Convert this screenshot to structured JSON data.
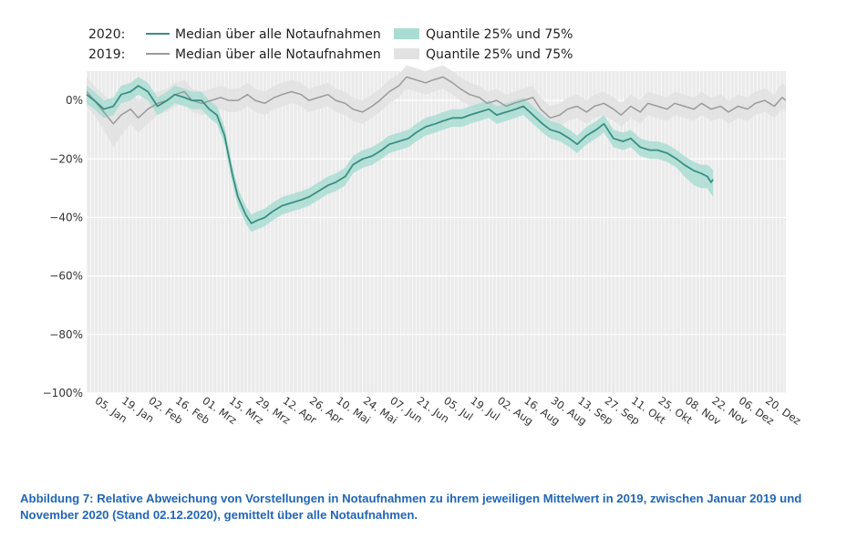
{
  "colors": {
    "median_2020": "#3a8f80",
    "band_2020": "#a9ddd2",
    "median_2019": "#9a9a9a",
    "band_2019": "#e2e2e2",
    "plot_bg": "#ebebeb",
    "caption": "#2166b5"
  },
  "legend": {
    "row_2020": {
      "year": "2020:",
      "median_label": "Median über alle Notaufnahmen",
      "band_label": "Quantile 25% und 75%"
    },
    "row_2019": {
      "year": "2019:",
      "median_label": "Median über alle Notaufnahmen",
      "band_label": "Quantile 25% und 75%"
    }
  },
  "caption": {
    "line1": "Abbildung 7: Relative Abweichung von Vorstellungen in Notaufnahmen zu ihrem jeweiligen Mittelwert in 2019, zwischen Januar 2019 und",
    "line2": "November 2020 (Stand 02.12.2020), gemittelt über alle Notaufnahmen."
  },
  "chart_data": {
    "type": "line",
    "x_unit": "day of year (1 = 01. Jan)",
    "xlim": [
      1,
      366
    ],
    "ylim": [
      -100,
      10
    ],
    "y_ticks": [
      0,
      -20,
      -40,
      -60,
      -80,
      -100
    ],
    "y_tick_labels": [
      "0%",
      "−20%",
      "−40%",
      "−60%",
      "−80%",
      "−100%"
    ],
    "x_ticks": [
      5,
      19,
      33,
      47,
      61,
      75,
      89,
      103,
      117,
      131,
      145,
      159,
      173,
      187,
      201,
      215,
      229,
      243,
      257,
      271,
      285,
      299,
      313,
      327,
      341,
      355
    ],
    "x_tick_labels": [
      "05. Jan",
      "19. Jan",
      "02. Feb",
      "16. Feb",
      "01. Mrz",
      "15. Mrz",
      "29. Mrz",
      "12. Apr",
      "26. Apr",
      "10. Mai",
      "24. Mai",
      "07. Jun",
      "21. Jun",
      "05. Jul",
      "19. Jul",
      "02. Aug",
      "16. Aug",
      "30. Aug",
      "13. Sep",
      "27. Sep",
      "11. Okt",
      "25. Okt",
      "08. Nov",
      "22. Nov",
      "06. Dez",
      "20. Dez"
    ],
    "grid": true,
    "legend_position": "top-left",
    "series": [
      {
        "year": "2020",
        "x": [
          1,
          5,
          10,
          15,
          19,
          24,
          28,
          33,
          38,
          43,
          47,
          52,
          56,
          61,
          65,
          69,
          73,
          77,
          80,
          84,
          87,
          90,
          94,
          98,
          103,
          108,
          113,
          117,
          122,
          127,
          131,
          136,
          140,
          145,
          150,
          155,
          159,
          164,
          169,
          173,
          178,
          183,
          187,
          192,
          197,
          201,
          206,
          211,
          215,
          220,
          225,
          229,
          234,
          239,
          243,
          248,
          253,
          257,
          262,
          267,
          271,
          276,
          281,
          285,
          290,
          295,
          299,
          304,
          309,
          313,
          318,
          322,
          325,
          327,
          328
        ],
        "median": [
          2,
          0,
          -3,
          -2,
          2,
          3,
          5,
          3,
          -2,
          0,
          2,
          1,
          0,
          0,
          -3,
          -5,
          -12,
          -25,
          -33,
          -39,
          -42,
          -41,
          -40,
          -38,
          -36,
          -35,
          -34,
          -33,
          -31,
          -29,
          -28,
          -26,
          -22,
          -20,
          -19,
          -17,
          -15,
          -14,
          -13,
          -11,
          -9,
          -8,
          -7,
          -6,
          -6,
          -5,
          -4,
          -3,
          -5,
          -4,
          -3,
          -2,
          -5,
          -8,
          -10,
          -11,
          -13,
          -15,
          -12,
          -10,
          -8,
          -13,
          -14,
          -13,
          -16,
          -17,
          -17,
          -18,
          -20,
          -22,
          -24,
          -25,
          -26,
          -28,
          -27
        ],
        "q25": [
          -1,
          -3,
          -6,
          -5,
          -1,
          0,
          2,
          0,
          -5,
          -3,
          -1,
          -2,
          -3,
          -3,
          -6,
          -8,
          -15,
          -28,
          -36,
          -42,
          -45,
          -44,
          -43,
          -41,
          -39,
          -38,
          -37,
          -36,
          -34,
          -32,
          -31,
          -29,
          -25,
          -23,
          -22,
          -20,
          -18,
          -17,
          -16,
          -14,
          -12,
          -11,
          -10,
          -9,
          -9,
          -8,
          -7,
          -6,
          -8,
          -7,
          -6,
          -5,
          -8,
          -11,
          -13,
          -14,
          -16,
          -18,
          -15,
          -13,
          -11,
          -16,
          -17,
          -16,
          -19,
          -20,
          -20,
          -21,
          -23,
          -26,
          -29,
          -30,
          -30,
          -32,
          -33
        ],
        "q75": [
          5,
          3,
          0,
          1,
          5,
          6,
          8,
          6,
          1,
          3,
          5,
          4,
          3,
          3,
          0,
          -2,
          -9,
          -22,
          -30,
          -36,
          -39,
          -38,
          -37,
          -35,
          -33,
          -32,
          -31,
          -30,
          -28,
          -26,
          -25,
          -23,
          -19,
          -17,
          -16,
          -14,
          -12,
          -11,
          -10,
          -8,
          -6,
          -5,
          -4,
          -3,
          -3,
          -2,
          -1,
          0,
          -2,
          -1,
          0,
          1,
          -2,
          -5,
          -7,
          -8,
          -10,
          -12,
          -9,
          -7,
          -5,
          -10,
          -11,
          -10,
          -13,
          -14,
          -14,
          -15,
          -17,
          -19,
          -21,
          -22,
          -22,
          -23,
          -24
        ]
      },
      {
        "year": "2019",
        "x": [
          1,
          5,
          10,
          15,
          19,
          24,
          28,
          33,
          38,
          43,
          47,
          52,
          56,
          61,
          66,
          71,
          75,
          80,
          85,
          89,
          94,
          99,
          103,
          108,
          113,
          117,
          122,
          127,
          131,
          136,
          140,
          145,
          150,
          154,
          159,
          164,
          168,
          173,
          178,
          182,
          187,
          192,
          196,
          201,
          206,
          210,
          215,
          220,
          224,
          229,
          234,
          238,
          243,
          248,
          252,
          257,
          262,
          266,
          271,
          276,
          280,
          285,
          290,
          294,
          299,
          304,
          308,
          313,
          318,
          322,
          327,
          332,
          336,
          341,
          346,
          350,
          355,
          360,
          364,
          366
        ],
        "median": [
          3,
          0,
          -4,
          -8,
          -5,
          -3,
          -6,
          -3,
          -1,
          0,
          2,
          3,
          0,
          -1,
          0,
          1,
          0,
          0,
          2,
          0,
          -1,
          1,
          2,
          3,
          2,
          0,
          1,
          2,
          0,
          -1,
          -3,
          -4,
          -2,
          0,
          3,
          5,
          8,
          7,
          6,
          7,
          8,
          6,
          4,
          2,
          1,
          -1,
          0,
          -2,
          -1,
          0,
          1,
          -3,
          -6,
          -5,
          -3,
          -2,
          -4,
          -2,
          -1,
          -3,
          -5,
          -2,
          -4,
          -1,
          -2,
          -3,
          -1,
          -2,
          -3,
          -1,
          -3,
          -2,
          -4,
          -2,
          -3,
          -1,
          0,
          -2,
          1,
          0
        ],
        "q25": [
          -2,
          -5,
          -10,
          -16,
          -12,
          -8,
          -11,
          -8,
          -5,
          -4,
          -2,
          -1,
          -4,
          -5,
          -4,
          -3,
          -4,
          -4,
          -2,
          -4,
          -5,
          -3,
          -2,
          -1,
          -2,
          -4,
          -3,
          -2,
          -4,
          -5,
          -7,
          -8,
          -6,
          -4,
          -1,
          1,
          4,
          3,
          2,
          3,
          4,
          2,
          0,
          -2,
          -3,
          -5,
          -4,
          -6,
          -5,
          -4,
          -3,
          -7,
          -10,
          -9,
          -7,
          -6,
          -8,
          -6,
          -5,
          -7,
          -9,
          -6,
          -8,
          -5,
          -6,
          -7,
          -5,
          -6,
          -7,
          -5,
          -7,
          -6,
          -8,
          -6,
          -7,
          -5,
          -4,
          -6,
          -3,
          -4
        ],
        "q75": [
          8,
          5,
          2,
          -1,
          1,
          3,
          0,
          2,
          3,
          4,
          6,
          7,
          4,
          3,
          4,
          5,
          4,
          4,
          6,
          4,
          3,
          5,
          6,
          7,
          6,
          4,
          5,
          6,
          4,
          3,
          1,
          0,
          2,
          4,
          7,
          9,
          12,
          11,
          10,
          11,
          12,
          10,
          8,
          6,
          5,
          3,
          4,
          2,
          3,
          4,
          5,
          1,
          -2,
          -1,
          1,
          2,
          0,
          2,
          3,
          1,
          -1,
          2,
          0,
          3,
          2,
          1,
          3,
          2,
          1,
          3,
          1,
          2,
          0,
          2,
          1,
          3,
          4,
          2,
          6,
          5
        ]
      }
    ]
  }
}
